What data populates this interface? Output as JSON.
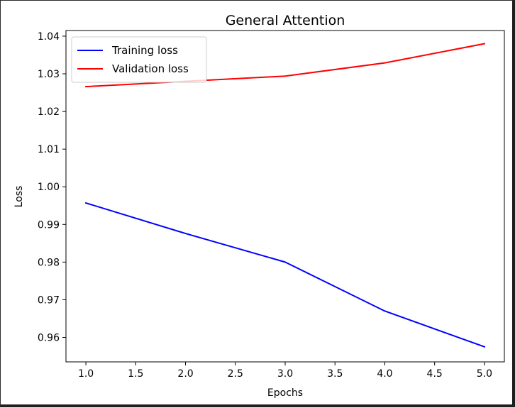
{
  "chart_data": {
    "type": "line",
    "title": "General Attention",
    "xlabel": "Epochs",
    "ylabel": "Loss",
    "xlim": [
      0.8,
      5.2
    ],
    "ylim": [
      0.9535,
      1.0415
    ],
    "x_ticks": [
      1.0,
      1.5,
      2.0,
      2.5,
      3.0,
      3.5,
      4.0,
      4.5,
      5.0
    ],
    "x_tick_labels": [
      "1.0",
      "1.5",
      "2.0",
      "2.5",
      "3.0",
      "3.5",
      "4.0",
      "4.5",
      "5.0"
    ],
    "y_ticks": [
      0.96,
      0.97,
      0.98,
      0.99,
      1.0,
      1.01,
      1.02,
      1.03,
      1.04
    ],
    "y_tick_labels": [
      "0.96",
      "0.97",
      "0.98",
      "0.99",
      "1.00",
      "1.01",
      "1.02",
      "1.03",
      "1.04"
    ],
    "grid": false,
    "legend_position": "top-left",
    "series": [
      {
        "name": "Training loss",
        "color": "#0000ff",
        "x": [
          1,
          2,
          3,
          4,
          5
        ],
        "y": [
          0.9957,
          0.9876,
          0.98,
          0.967,
          0.9575
        ]
      },
      {
        "name": "Validation loss",
        "color": "#ff0000",
        "x": [
          1,
          2,
          3,
          4,
          5
        ],
        "y": [
          1.0266,
          1.028,
          1.0294,
          1.0329,
          1.038
        ]
      }
    ]
  }
}
